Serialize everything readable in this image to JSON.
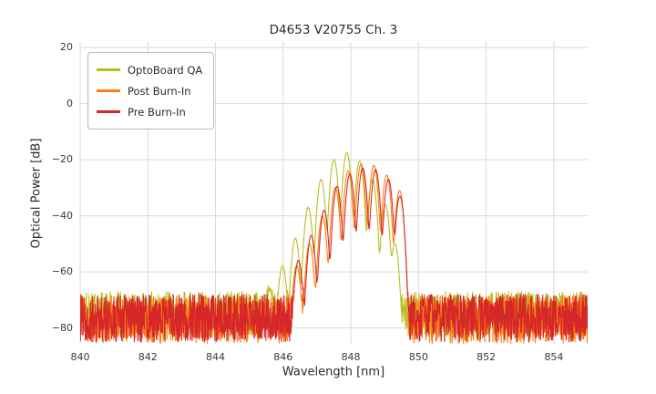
{
  "chart_data": {
    "type": "line",
    "title": "D4653 V20755 Ch. 3",
    "xlabel": "Wavelength [nm]",
    "ylabel": "Optical Power [dB]",
    "xlim": [
      840,
      855
    ],
    "ylim": [
      -86,
      22
    ],
    "xticks": [
      840,
      842,
      844,
      846,
      848,
      850,
      852,
      854
    ],
    "yticks": [
      20,
      0,
      -20,
      -40,
      -60,
      -80
    ],
    "grid": true,
    "grid_color": "#d9d9d9",
    "background": "#ffffff",
    "legend_position": "upper left",
    "sample_step": 0.008,
    "series": [
      {
        "name": "OptoBoard QA",
        "color": "#bcbd22",
        "noise_floor_db": -75,
        "noise_spread_db": 8,
        "mode_width_nm": 0.08,
        "modes": [
          [
            845.6,
            -67
          ],
          [
            845.98,
            -58
          ],
          [
            846.36,
            -48
          ],
          [
            846.74,
            -37
          ],
          [
            847.12,
            -27
          ],
          [
            847.5,
            -20
          ],
          [
            847.88,
            -17.5
          ],
          [
            848.26,
            -20.5
          ],
          [
            848.64,
            -27
          ],
          [
            849.02,
            -36
          ],
          [
            849.3,
            -50
          ]
        ]
      },
      {
        "name": "Post Burn-In",
        "color": "#ff7f0e",
        "noise_floor_db": -77,
        "noise_spread_db": 8.5,
        "mode_width_nm": 0.08,
        "modes": [
          [
            846.4,
            -58
          ],
          [
            846.78,
            -50
          ],
          [
            847.16,
            -40
          ],
          [
            847.54,
            -30
          ],
          [
            847.92,
            -24
          ],
          [
            848.3,
            -21.5
          ],
          [
            848.68,
            -22
          ],
          [
            849.06,
            -25.5
          ],
          [
            849.44,
            -31
          ]
        ]
      },
      {
        "name": "Pre Burn-In",
        "color": "#d62728",
        "noise_floor_db": -76.5,
        "noise_spread_db": 8.5,
        "mode_width_nm": 0.08,
        "modes": [
          [
            846.45,
            -56
          ],
          [
            846.83,
            -47
          ],
          [
            847.21,
            -38
          ],
          [
            847.59,
            -29.5
          ],
          [
            847.97,
            -25
          ],
          [
            848.35,
            -23
          ],
          [
            848.73,
            -23.5
          ],
          [
            849.11,
            -27
          ],
          [
            849.45,
            -33
          ]
        ]
      }
    ]
  }
}
